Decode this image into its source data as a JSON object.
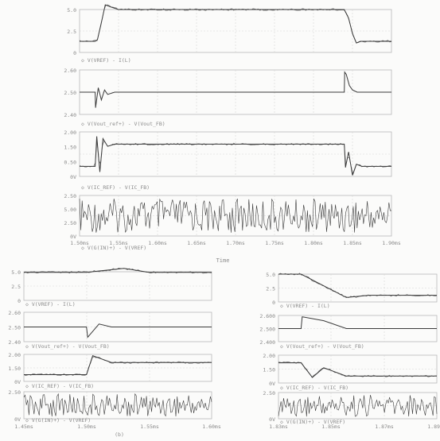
{
  "page": {
    "x_axis_title": "Time",
    "bottom_left_stamp": "(b)"
  },
  "colors": {
    "background": "#fbfbfa",
    "frame": "#b8b8b8",
    "grid": "#d6d6d6",
    "trace": "#3a3a3a",
    "trace_light": "#6c6c6c",
    "text": "#8a8a8a"
  },
  "chart_data": [
    {
      "id": "top",
      "type": "line",
      "x_ticks": [
        "1.50ms",
        "1.55ms",
        "1.60ms",
        "1.65ms",
        "1.70ms",
        "1.75ms",
        "1.80ms",
        "1.85ms",
        "1.90ms"
      ],
      "x_range": [
        1.5,
        1.9
      ],
      "x_unit": "ms",
      "grid": true,
      "panels": [
        {
          "y_ticks": [
            "5.0",
            "2.5",
            "0"
          ],
          "ylim": [
            0,
            5
          ],
          "legend": "V(VREF) - I(L)",
          "series": [
            {
              "name": "V(VREF)",
              "x": [
                1.5,
                1.52,
                1.523,
                1.528,
                1.533,
                1.54,
                1.55,
                1.6,
                1.7,
                1.8,
                1.8395,
                1.84,
                1.845,
                1.85,
                1.855,
                1.86,
                1.9
              ],
              "y": [
                1.3,
                1.3,
                1.5,
                3.5,
                5.6,
                5.3,
                5.0,
                5.0,
                5.0,
                5.0,
                5.0,
                4.9,
                4.0,
                2.2,
                1.1,
                1.3,
                1.3
              ]
            }
          ]
        },
        {
          "y_ticks": [
            "2.60",
            "2.50",
            "2.40"
          ],
          "ylim": [
            2.4,
            2.6
          ],
          "legend": "V(Vout_ref+) - V(Vout_FB)",
          "series": [
            {
              "name": "V(Vout_ref+)",
              "x": [
                1.5,
                1.52,
                1.5205,
                1.524,
                1.528,
                1.532,
                1.536,
                1.545,
                1.8395,
                1.84,
                1.842,
                1.846,
                1.85,
                1.856,
                1.9
              ],
              "y": [
                2.5,
                2.5,
                2.43,
                2.52,
                2.465,
                2.51,
                2.49,
                2.5,
                2.5,
                2.59,
                2.58,
                2.53,
                2.51,
                2.5,
                2.5
              ]
            }
          ]
        },
        {
          "y_ticks": [
            "2.00",
            "1.50",
            "0.50",
            "0V"
          ],
          "ylim": [
            0,
            2
          ],
          "legend": "V(IC_REF) - V(IC_FB)",
          "series": [
            {
              "name": "V(IC_REF)",
              "x": [
                1.5,
                1.52,
                1.522,
                1.526,
                1.53,
                1.536,
                1.545,
                1.8395,
                1.841,
                1.845,
                1.85,
                1.855,
                1.862,
                1.9
              ],
              "y": [
                0.45,
                0.45,
                1.8,
                0.2,
                1.7,
                1.35,
                1.45,
                1.45,
                0.4,
                1.1,
                0.05,
                0.55,
                0.45,
                0.45
              ]
            }
          ]
        },
        {
          "y_ticks": [
            "2.50",
            "5.00",
            "2.50",
            "0V"
          ],
          "ylim": [
            0,
            5
          ],
          "legend": "V(G(IN)+) - V(VREF)",
          "series": [
            {
              "name": "V(G(IN)+)",
              "x": [
                1.5,
                1.9
              ],
              "y": [
                2.5,
                2.5
              ]
            }
          ]
        }
      ]
    },
    {
      "id": "bottom-left",
      "type": "line",
      "x_ticks": [
        "1.45ms",
        "1.50ms",
        "1.55ms",
        "1.60ms"
      ],
      "x_range": [
        1.45,
        1.6
      ],
      "x_unit": "ms",
      "grid": true,
      "panels": [
        {
          "y_ticks": [
            "5.0",
            "2.5",
            "0"
          ],
          "ylim": [
            0,
            5
          ],
          "legend": "V(VREF) - I(L)",
          "series": [
            {
              "name": "V(VREF)",
              "x": [
                1.45,
                1.5,
                1.53,
                1.55,
                1.6
              ],
              "y": [
                4.9,
                4.9,
                5.6,
                4.9,
                4.9
              ]
            }
          ]
        },
        {
          "y_ticks": [
            "2.60",
            "2.50",
            "2.40"
          ],
          "ylim": [
            2.4,
            2.6
          ],
          "legend": "V(Vout_ref+) - V(Vout_FB)",
          "series": [
            {
              "name": "V(Vout_ref+)",
              "x": [
                1.45,
                1.5,
                1.501,
                1.51,
                1.52,
                1.6
              ],
              "y": [
                2.5,
                2.5,
                2.43,
                2.52,
                2.5,
                2.5
              ]
            }
          ]
        },
        {
          "y_ticks": [
            "2.00",
            "1.50",
            "0V"
          ],
          "ylim": [
            0,
            2
          ],
          "legend": "V(IC_REF) - V(IC_FB)",
          "series": [
            {
              "name": "V(IC_REF)",
              "x": [
                1.45,
                1.5,
                1.505,
                1.52,
                1.6
              ],
              "y": [
                0.5,
                0.5,
                1.9,
                1.4,
                1.4
              ]
            }
          ]
        },
        {
          "y_ticks": [
            "2.50",
            "0V"
          ],
          "ylim": [
            0,
            5
          ],
          "legend": "V(G(IN)+) - V(VREF)",
          "series": [
            {
              "name": "V(G(IN)+)",
              "x": [
                1.45,
                1.6
              ],
              "y": [
                2.5,
                2.5
              ]
            }
          ]
        }
      ]
    },
    {
      "id": "bottom-right",
      "type": "line",
      "x_ticks": [
        "1.83ms",
        "1.85ms",
        "1.87ms",
        "1.89ms"
      ],
      "x_range": [
        1.83,
        1.9
      ],
      "x_unit": "ms",
      "grid": true,
      "panels": [
        {
          "y_ticks": [
            "5.0",
            "2.5",
            "0"
          ],
          "ylim": [
            0,
            5
          ],
          "legend": "V(VREF) - I(L)",
          "series": [
            {
              "name": "V(VREF)",
              "x": [
                1.83,
                1.84,
                1.86,
                1.87,
                1.9
              ],
              "y": [
                5.0,
                5.0,
                0.8,
                1.2,
                1.2
              ]
            }
          ]
        },
        {
          "y_ticks": [
            "2.600",
            "2.500",
            "2.400"
          ],
          "ylim": [
            2.4,
            2.6
          ],
          "legend": "V(Vout_ref+) - V(Vout_FB)",
          "series": [
            {
              "name": "V(Vout_ref+)",
              "x": [
                1.83,
                1.84,
                1.8405,
                1.85,
                1.86,
                1.9
              ],
              "y": [
                2.5,
                2.5,
                2.59,
                2.56,
                2.5,
                2.5
              ]
            }
          ]
        },
        {
          "y_ticks": [
            "2.00",
            "1.50",
            "0V"
          ],
          "ylim": [
            0,
            2
          ],
          "legend": "V(IC_REF) - V(IC_FB)",
          "series": [
            {
              "name": "V(IC_REF)",
              "x": [
                1.83,
                1.84,
                1.845,
                1.85,
                1.86,
                1.9
              ],
              "y": [
                1.45,
                1.45,
                0.4,
                1.1,
                0.5,
                0.5
              ]
            }
          ]
        },
        {
          "y_ticks": [
            "2.50",
            "0V"
          ],
          "ylim": [
            0,
            5
          ],
          "legend": "V(G(IN)+) - V(VREF)",
          "series": [
            {
              "name": "V(G(IN)+)",
              "x": [
                1.83,
                1.9
              ],
              "y": [
                2.5,
                2.5
              ]
            }
          ]
        }
      ]
    }
  ]
}
